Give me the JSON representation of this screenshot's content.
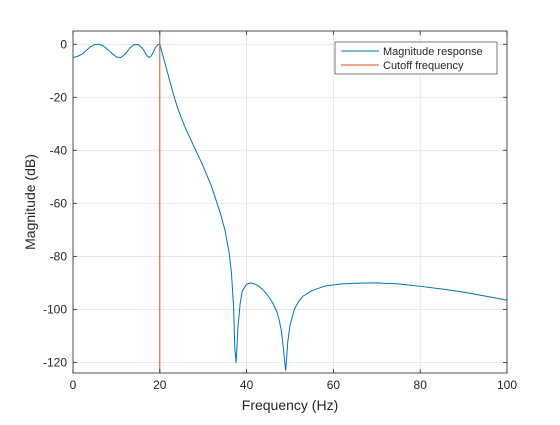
{
  "chart_data": {
    "type": "line",
    "xlabel": "Frequency (Hz)",
    "ylabel": "Magnitude (dB)",
    "xlim": [
      0,
      100
    ],
    "ylim": [
      -124,
      5
    ],
    "xticks": [
      0,
      20,
      40,
      60,
      80,
      100
    ],
    "yticks": [
      0,
      -20,
      -40,
      -60,
      -80,
      -100,
      -120
    ],
    "grid": true,
    "legend_position": "top-right",
    "series": [
      {
        "name": "Magnitude response",
        "color": "#0072BD",
        "x": [
          0,
          1,
          2,
          3,
          4,
          5,
          6,
          7,
          8,
          9,
          10,
          11,
          12,
          13,
          14,
          15,
          16,
          17,
          17.5,
          18,
          18.5,
          19,
          19.5,
          20,
          21,
          22,
          23,
          24,
          25,
          26,
          28,
          30,
          32,
          34,
          35,
          36,
          36.5,
          37,
          37.3,
          37.6,
          38,
          38.5,
          39,
          40,
          41,
          42,
          43,
          44,
          45,
          46,
          47,
          47.5,
          48,
          48.5,
          48.8,
          49,
          49.2,
          49.5,
          50,
          51,
          52,
          53,
          55,
          58,
          62,
          66,
          70,
          75,
          80,
          85,
          90,
          95,
          100
        ],
        "y": [
          -5,
          -4.6,
          -3.8,
          -2.4,
          -1.0,
          -0.1,
          0,
          -0.6,
          -2.0,
          -3.5,
          -4.8,
          -5.0,
          -3.8,
          -1.6,
          -0.2,
          -0.1,
          -1.5,
          -4.2,
          -5.0,
          -4.5,
          -3.0,
          -1.2,
          -0.2,
          0,
          -6,
          -12,
          -18,
          -23.5,
          -28,
          -32,
          -39,
          -46,
          -54,
          -64,
          -70,
          -79,
          -86,
          -99,
          -115,
          -120,
          -107,
          -98,
          -93,
          -90.5,
          -90,
          -90.5,
          -91.5,
          -93,
          -95,
          -97.5,
          -101,
          -104,
          -108,
          -115,
          -120,
          -123,
          -119,
          -112,
          -106,
          -100,
          -97,
          -95,
          -93,
          -91.2,
          -90.4,
          -90.1,
          -90,
          -90.4,
          -91.3,
          -92.3,
          -93.5,
          -95,
          -96.5
        ]
      },
      {
        "name": "Cutoff frequency",
        "color": "#D95319",
        "x": [
          20,
          20
        ],
        "y": [
          -124,
          5
        ]
      }
    ]
  }
}
